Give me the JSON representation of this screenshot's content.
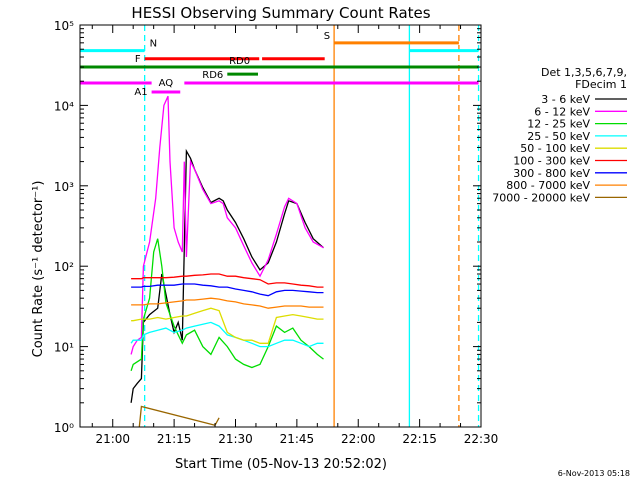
{
  "chart_data": {
    "type": "line",
    "title": "HESSI Observing Summary Count Rates",
    "xlabel": "Start Time (05-Nov-13 20:52:02)",
    "ylabel": "Count Rate (s⁻¹ detector⁻¹)",
    "footer": "6-Nov-2013 05:18",
    "x_unit": "minutes since 21:00",
    "xlim": [
      -8,
      90
    ],
    "ylim": [
      1,
      100000
    ],
    "y_scale": "log",
    "x_ticks": [
      {
        "x": 0,
        "label": "21:00"
      },
      {
        "x": 15,
        "label": "21:15"
      },
      {
        "x": 30,
        "label": "21:30"
      },
      {
        "x": 45,
        "label": "21:45"
      },
      {
        "x": 60,
        "label": "22:00"
      },
      {
        "x": 75,
        "label": "22:15"
      },
      {
        "x": 90,
        "label": "22:30"
      }
    ],
    "y_ticks": [
      {
        "y": 1,
        "label": "10⁰"
      },
      {
        "y": 10,
        "label": "10¹"
      },
      {
        "y": 100,
        "label": "10²"
      },
      {
        "y": 1000,
        "label": "10³"
      },
      {
        "y": 10000,
        "label": "10⁴"
      },
      {
        "y": 100000,
        "label": "10⁵"
      }
    ],
    "legend": {
      "placement": "right",
      "header": [
        "Det 1,3,5,6,7,9,",
        "FDecim 1"
      ],
      "entries": [
        "3 - 6 keV",
        "6 - 12 keV",
        "12 - 25 keV",
        "25 - 50 keV",
        "50 - 100 keV",
        "100 - 300 keV",
        "300 - 800 keV",
        "800 - 7000 keV",
        "7000 - 20000 keV"
      ]
    },
    "series": [
      {
        "name": "3 - 6 keV",
        "color": "#000000",
        "x": [
          4.5,
          5,
          6,
          7,
          7.5,
          9,
          11,
          12,
          13,
          14,
          15,
          16,
          17,
          18,
          19,
          20,
          22,
          24,
          26,
          27,
          28,
          30,
          32,
          34,
          36,
          38,
          40,
          42,
          43,
          45,
          47,
          49,
          51.5
        ],
        "y": [
          2,
          3,
          3.5,
          4,
          20,
          25,
          30,
          80,
          45,
          25,
          15,
          20,
          12,
          2700,
          2200,
          1600,
          950,
          620,
          700,
          650,
          500,
          350,
          220,
          130,
          90,
          110,
          200,
          450,
          650,
          600,
          350,
          220,
          170
        ]
      },
      {
        "name": "6 - 12 keV",
        "color": "#ff00ff",
        "x": [
          4.5,
          5,
          6,
          7,
          7.5,
          9,
          10.5,
          11.5,
          12.5,
          13.5,
          14,
          15,
          16,
          17,
          17.5,
          18,
          19,
          20,
          22,
          24,
          26,
          27,
          28,
          30,
          32,
          34,
          36,
          38,
          40,
          42,
          43,
          45,
          47,
          49,
          51.5
        ],
        "y": [
          8,
          10,
          12,
          13,
          100,
          200,
          700,
          3000,
          10000,
          13000,
          2000,
          300,
          200,
          150,
          2000,
          130,
          2000,
          1600,
          900,
          600,
          650,
          600,
          400,
          300,
          180,
          110,
          75,
          120,
          250,
          550,
          700,
          600,
          300,
          200,
          170
        ]
      },
      {
        "name": "12 - 25 keV",
        "color": "#00dd00",
        "x": [
          4.5,
          5,
          7,
          7.5,
          9,
          10,
          11,
          12,
          13,
          14,
          15,
          16,
          17,
          18,
          20,
          22,
          24,
          26,
          28,
          30,
          32,
          34,
          36,
          38,
          40,
          42,
          44,
          46,
          48,
          50,
          51.5
        ],
        "y": [
          5,
          6,
          7,
          22,
          40,
          150,
          220,
          100,
          35,
          25,
          18,
          14,
          11,
          14,
          16,
          10,
          8,
          13,
          10,
          7,
          6,
          5.5,
          6,
          10,
          18,
          15,
          17,
          12,
          10,
          8,
          7
        ]
      },
      {
        "name": "25 - 50 keV",
        "color": "#00ffff",
        "x": [
          4.5,
          5,
          7,
          7.5,
          9,
          11,
          13,
          15,
          17,
          18,
          20,
          22,
          24,
          26,
          28,
          30,
          32,
          34,
          36,
          38,
          40,
          42,
          44,
          46,
          48,
          50,
          51.5
        ],
        "y": [
          11,
          12,
          12,
          14,
          15,
          16,
          17,
          15,
          16,
          17,
          18,
          19,
          20,
          18,
          14,
          13,
          12,
          11,
          10,
          10,
          11,
          12,
          12,
          11,
          10,
          11,
          11
        ]
      },
      {
        "name": "50 - 100 keV",
        "color": "#dddd00",
        "x": [
          4.5,
          5,
          7,
          7.5,
          9,
          11,
          13,
          15,
          17,
          18,
          20,
          22,
          24,
          26,
          28,
          30,
          32,
          34,
          36,
          38,
          40,
          42,
          44,
          46,
          48,
          50,
          51.5
        ],
        "y": [
          21,
          21,
          22,
          22,
          22,
          23,
          22,
          23,
          24,
          24,
          26,
          28,
          30,
          28,
          15,
          13,
          12,
          12,
          11,
          11,
          23,
          24,
          25,
          24,
          23,
          22,
          22
        ]
      },
      {
        "name": "100 - 300 keV",
        "color": "#ff0000",
        "x": [
          4.5,
          5,
          7,
          7.5,
          9,
          11,
          13,
          15,
          17,
          18,
          20,
          22,
          24,
          26,
          28,
          30,
          32,
          34,
          36,
          38,
          40,
          42,
          44,
          46,
          48,
          50,
          51.5
        ],
        "y": [
          70,
          70,
          70,
          72,
          72,
          72,
          72,
          73,
          75,
          75,
          77,
          78,
          80,
          80,
          75,
          75,
          72,
          70,
          68,
          60,
          62,
          62,
          60,
          58,
          57,
          55,
          55
        ]
      },
      {
        "name": "300 - 800 keV",
        "color": "#0000ff",
        "x": [
          4.5,
          5,
          7,
          7.5,
          9,
          11,
          13,
          15,
          17,
          18,
          20,
          22,
          24,
          26,
          28,
          30,
          32,
          34,
          36,
          38,
          40,
          42,
          44,
          46,
          48,
          50,
          51.5
        ],
        "y": [
          55,
          55,
          55,
          56,
          56,
          58,
          58,
          58,
          60,
          60,
          60,
          58,
          57,
          55,
          55,
          52,
          50,
          48,
          45,
          43,
          48,
          50,
          50,
          49,
          48,
          47,
          47
        ]
      },
      {
        "name": "800 - 7000 keV",
        "color": "#ff8000",
        "x": [
          4.5,
          5,
          7,
          7.5,
          9,
          11,
          13,
          15,
          17,
          18,
          20,
          22,
          24,
          26,
          28,
          30,
          32,
          34,
          36,
          38,
          40,
          42,
          44,
          46,
          48,
          50,
          51.5
        ],
        "y": [
          33,
          33,
          33,
          33,
          34,
          34,
          35,
          36,
          37,
          38,
          38,
          39,
          40,
          39,
          37,
          36,
          34,
          33,
          32,
          30,
          31,
          32,
          32,
          32,
          31,
          31,
          31
        ]
      },
      {
        "name": "7000 - 20000 keV",
        "color": "#996600",
        "x": [
          6.5,
          7,
          25,
          26
        ],
        "y": [
          1,
          1.8,
          1.05,
          1.3
        ]
      }
    ],
    "vertical_lines": [
      {
        "x": 7.8,
        "color": "#00ffff",
        "style": "dashed"
      },
      {
        "x": 54.1,
        "color": "#ff8000",
        "style": "solid"
      },
      {
        "x": 72.5,
        "color": "#00ffff",
        "style": "solid"
      },
      {
        "x": 84.6,
        "color": "#ff8000",
        "style": "dashed"
      },
      {
        "x": 89.4,
        "color": "#00ffff",
        "style": "dashed"
      }
    ],
    "flag_bars": [
      {
        "label": "N",
        "color": "#00ffff",
        "y": 48000,
        "segments": [
          [
            -8,
            7.8
          ],
          [
            72.5,
            89.4
          ]
        ]
      },
      {
        "label": "S",
        "color": "#ff8000",
        "y": 60000,
        "segments": [
          [
            54.1,
            84.6
          ]
        ]
      },
      {
        "label": "F",
        "color": "#ff0000",
        "y": 38000,
        "segments": [
          [
            7.8,
            35.8
          ],
          [
            36.5,
            51.8
          ]
        ]
      },
      {
        "label": "RD0",
        "color": "#008800",
        "y": 30000,
        "segments": [
          [
            -8,
            89.4
          ]
        ]
      },
      {
        "label": "RD6",
        "color": "#008800",
        "y": 24500,
        "segments": [
          [
            28,
            35.5
          ]
        ]
      },
      {
        "label": "AQ",
        "color": "#ff00ff",
        "y": 14700,
        "segments": [
          [
            9.5,
            16.5
          ]
        ]
      },
      {
        "label": "A1",
        "color": "#ff00ff",
        "y": 19000,
        "segments": [
          [
            -8,
            9.5
          ],
          [
            17.5,
            89.4
          ]
        ]
      }
    ]
  }
}
